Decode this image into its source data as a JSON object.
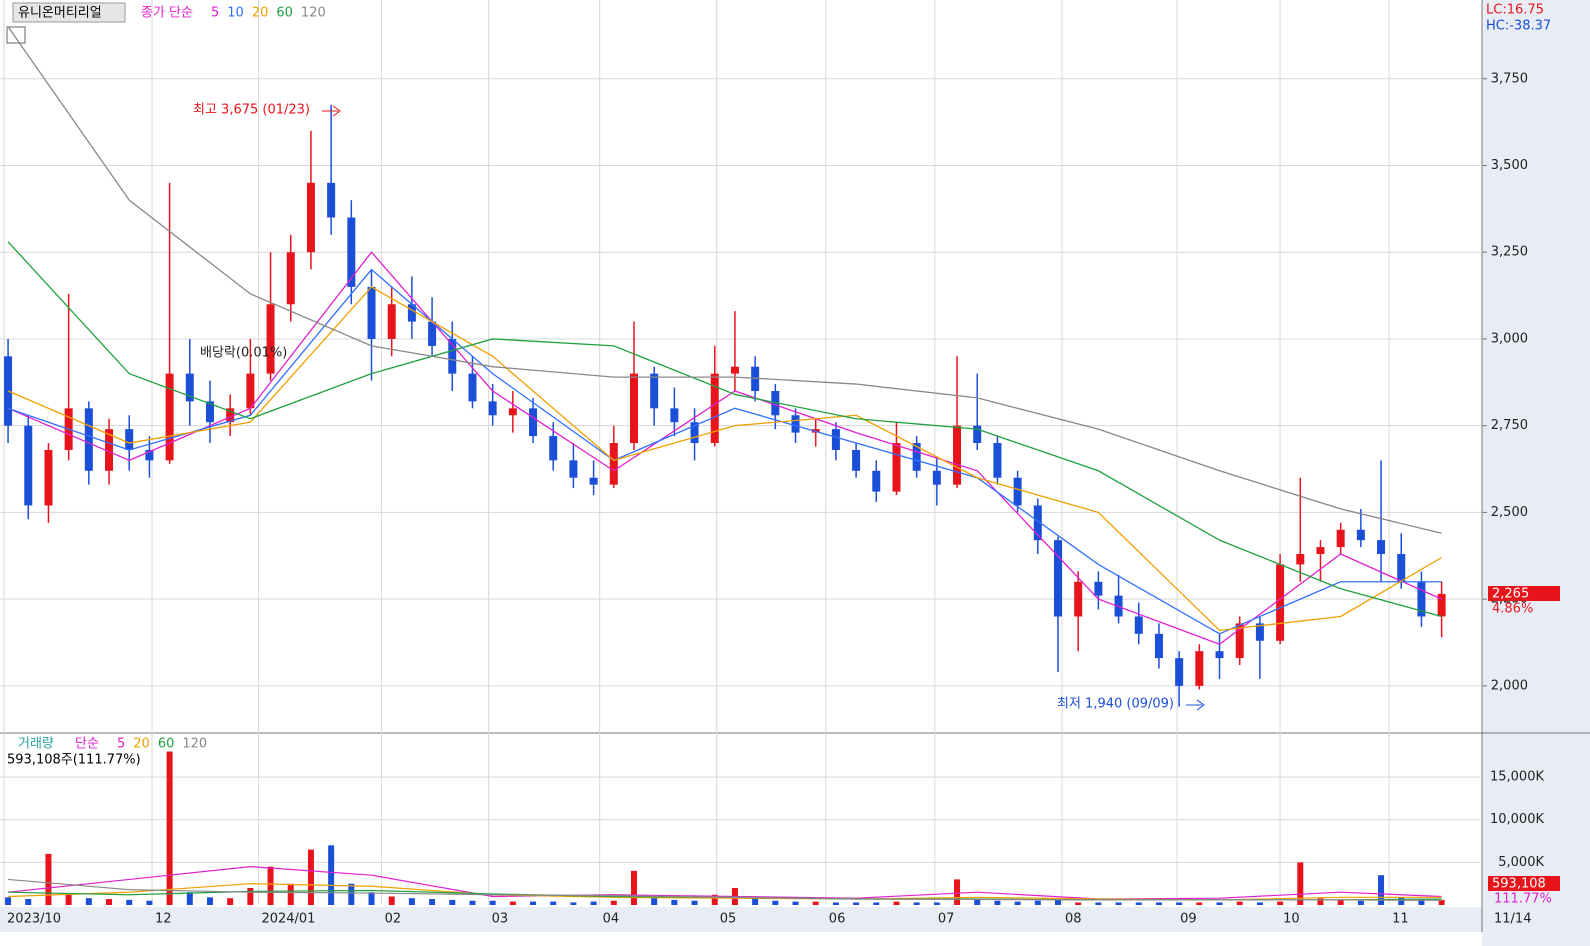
{
  "chart_data": [
    {
      "type": "candlestick",
      "title": "유니온머티리얼",
      "legend_label": "종가 단순",
      "lc": "LC:16.75",
      "hc": "HC:-38.37",
      "price_tag": "2,265",
      "change_tag": "4.86%",
      "annotations": [
        "최고 3,675 (01/23)",
        "최저 1,940 (09/09)",
        "배당락(0.01%)"
      ],
      "open": [
        2950,
        2750,
        2520,
        2680,
        2800,
        2620,
        2740,
        2680,
        2650,
        2900,
        2820,
        2760,
        2800,
        2900,
        3100,
        3250,
        3450,
        3350,
        3150,
        3000,
        3100,
        3050,
        3000,
        2900,
        2820,
        2780,
        2800,
        2720,
        2650,
        2600,
        2580,
        2700,
        2900,
        2800,
        2760,
        2700,
        2900,
        2920,
        2850,
        2780,
        2730,
        2740,
        2680,
        2620,
        2560,
        2700,
        2620,
        2580,
        2750,
        2700,
        2600,
        2520,
        2420,
        2200,
        2300,
        2260,
        2200,
        2150,
        2080,
        2000,
        2100,
        2080,
        2180,
        2130,
        2350,
        2380,
        2400,
        2450,
        2420,
        2380,
        2300,
        2200
      ],
      "high": [
        3000,
        2780,
        2700,
        3130,
        2820,
        2770,
        2780,
        2720,
        3450,
        3000,
        2880,
        2840,
        3000,
        3250,
        3300,
        3600,
        3675,
        3400,
        3200,
        3150,
        3180,
        3120,
        3050,
        2950,
        2870,
        2850,
        2830,
        2760,
        2700,
        2650,
        2750,
        3050,
        2920,
        2860,
        2800,
        2980,
        3080,
        2950,
        2870,
        2800,
        2770,
        2760,
        2700,
        2650,
        2760,
        2720,
        2660,
        2950,
        2900,
        2720,
        2620,
        2540,
        2430,
        2330,
        2330,
        2320,
        2240,
        2180,
        2100,
        2120,
        2150,
        2200,
        2200,
        2380,
        2600,
        2420,
        2470,
        2510,
        2650,
        2440,
        2330,
        2300
      ],
      "low": [
        2700,
        2480,
        2470,
        2650,
        2580,
        2580,
        2620,
        2600,
        2640,
        2750,
        2700,
        2720,
        2780,
        2880,
        3050,
        3200,
        3300,
        3100,
        2880,
        2950,
        3000,
        2950,
        2850,
        2800,
        2750,
        2730,
        2700,
        2620,
        2570,
        2550,
        2570,
        2680,
        2750,
        2720,
        2650,
        2690,
        2850,
        2820,
        2740,
        2700,
        2690,
        2650,
        2600,
        2530,
        2550,
        2600,
        2520,
        2570,
        2680,
        2580,
        2500,
        2380,
        2040,
        2100,
        2220,
        2180,
        2120,
        2050,
        1940,
        1990,
        2020,
        2060,
        2020,
        2120,
        2300,
        2300,
        2380,
        2400,
        2300,
        2280,
        2170,
        2140
      ],
      "close": [
        2750,
        2520,
        2680,
        2800,
        2620,
        2740,
        2680,
        2650,
        2900,
        2820,
        2760,
        2800,
        2900,
        3100,
        3250,
        3450,
        3350,
        3150,
        3000,
        3100,
        3050,
        2980,
        2900,
        2820,
        2780,
        2800,
        2720,
        2650,
        2600,
        2580,
        2700,
        2900,
        2800,
        2760,
        2700,
        2900,
        2920,
        2850,
        2780,
        2730,
        2740,
        2680,
        2620,
        2560,
        2700,
        2620,
        2580,
        2750,
        2700,
        2600,
        2520,
        2420,
        2200,
        2300,
        2260,
        2200,
        2150,
        2080,
        2000,
        2100,
        2080,
        2180,
        2130,
        2350,
        2380,
        2400,
        2450,
        2420,
        2380,
        2300,
        2200,
        2265
      ],
      "series": [
        {
          "name": "5",
          "color": "#e020d0",
          "x": [
            0,
            6,
            12,
            18,
            24,
            30,
            36,
            42,
            48,
            54,
            60,
            66,
            71
          ],
          "values": [
            2800,
            2650,
            2800,
            3250,
            2850,
            2620,
            2850,
            2730,
            2620,
            2250,
            2120,
            2380,
            2250
          ]
        },
        {
          "name": "10",
          "color": "#3070ff",
          "x": [
            0,
            6,
            12,
            18,
            24,
            30,
            36,
            42,
            48,
            54,
            60,
            66,
            71
          ],
          "values": [
            2800,
            2680,
            2780,
            3200,
            2900,
            2650,
            2800,
            2700,
            2600,
            2350,
            2150,
            2300,
            2300
          ]
        },
        {
          "name": "20",
          "color": "#f0a000",
          "x": [
            0,
            6,
            12,
            18,
            24,
            30,
            36,
            42,
            48,
            54,
            60,
            66,
            71
          ],
          "values": [
            2850,
            2700,
            2760,
            3150,
            2950,
            2650,
            2750,
            2780,
            2600,
            2500,
            2160,
            2200,
            2370
          ]
        },
        {
          "name": "60",
          "color": "#20a040",
          "x": [
            0,
            6,
            12,
            18,
            24,
            30,
            36,
            42,
            48,
            54,
            60,
            66,
            71
          ],
          "values": [
            3280,
            2900,
            2770,
            2900,
            3000,
            2980,
            2840,
            2770,
            2740,
            2620,
            2420,
            2280,
            2200
          ]
        },
        {
          "name": "120",
          "color": "#888888",
          "x": [
            0,
            6,
            12,
            18,
            24,
            30,
            36,
            42,
            48,
            54,
            60,
            66,
            71
          ],
          "values": [
            3900,
            3400,
            3130,
            2980,
            2920,
            2890,
            2890,
            2870,
            2830,
            2740,
            2620,
            2510,
            2440
          ]
        }
      ],
      "ylim": [
        1867,
        3977
      ],
      "yticks": [
        {
          "value": 2000,
          "label": "2,000"
        },
        {
          "value": 2250,
          "label": "2,250"
        },
        {
          "value": 2500,
          "label": "2,500"
        },
        {
          "value": 2750,
          "label": "2,750"
        },
        {
          "value": 3000,
          "label": "3,000"
        },
        {
          "value": 3250,
          "label": "3,250"
        },
        {
          "value": 3500,
          "label": "3,500"
        },
        {
          "value": 3750,
          "label": "3,750"
        }
      ],
      "xlim": [
        -0.4,
        73
      ],
      "xticks": [
        {
          "value": -0.2,
          "label": "2023/10"
        },
        {
          "value": 7.13,
          "label": "12"
        },
        {
          "value": 12.4,
          "label": "2024/01"
        },
        {
          "value": 18.5,
          "label": "02"
        },
        {
          "value": 23.8,
          "label": "03"
        },
        {
          "value": 29.3,
          "label": "04"
        },
        {
          "value": 35.1,
          "label": "05"
        },
        {
          "value": 40.5,
          "label": "06"
        },
        {
          "value": 45.9,
          "label": "07"
        },
        {
          "value": 52.2,
          "label": "08"
        },
        {
          "value": 57.9,
          "label": "09"
        },
        {
          "value": 63.0,
          "label": "10"
        },
        {
          "value": 68.4,
          "label": "11"
        }
      ],
      "last_date": "11/14"
    },
    {
      "type": "bar",
      "title": "거래량",
      "legend_label": "단순",
      "subtitle": "593,108주(111.77%)",
      "volume_tag": "593,108",
      "ratio_tag": "111.77%",
      "values": [
        900,
        700,
        6000,
        1200,
        800,
        700,
        600,
        500,
        18000,
        1500,
        900,
        800,
        2000,
        4500,
        2500,
        6500,
        7000,
        2500,
        1500,
        1000,
        800,
        700,
        600,
        500,
        500,
        400,
        400,
        400,
        300,
        400,
        500,
        4000,
        900,
        600,
        500,
        1200,
        2000,
        800,
        500,
        400,
        400,
        300,
        300,
        300,
        400,
        300,
        300,
        3000,
        700,
        500,
        400,
        500,
        600,
        300,
        300,
        300,
        300,
        300,
        300,
        300,
        300,
        400,
        300,
        400,
        5000,
        800,
        600,
        500,
        3500,
        900,
        700,
        593
      ],
      "series": [
        {
          "name": "5",
          "color": "#e020d0",
          "x": [
            0,
            6,
            12,
            18,
            24,
            30,
            36,
            42,
            48,
            54,
            60,
            66,
            71
          ],
          "values": [
            1500,
            3000,
            4500,
            3500,
            1000,
            1200,
            1000,
            800,
            1500,
            700,
            800,
            1500,
            1000
          ]
        },
        {
          "name": "20",
          "color": "#f0a000",
          "x": [
            0,
            6,
            12,
            18,
            24,
            30,
            36,
            42,
            48,
            54,
            60,
            66,
            71
          ],
          "values": [
            1000,
            1500,
            2500,
            2200,
            1200,
            900,
            800,
            700,
            900,
            700,
            600,
            900,
            900
          ]
        },
        {
          "name": "60",
          "color": "#20a040",
          "x": [
            0,
            6,
            12,
            18,
            24,
            30,
            36,
            42,
            48,
            54,
            60,
            66,
            71
          ],
          "values": [
            1500,
            1200,
            1600,
            1700,
            1300,
            1000,
            900,
            700,
            700,
            600,
            600,
            600,
            700
          ]
        },
        {
          "name": "120",
          "color": "#888888",
          "x": [
            0,
            6,
            12,
            18,
            24,
            30,
            36,
            42,
            48,
            54,
            60,
            66,
            71
          ],
          "values": [
            3000,
            1800,
            1500,
            1400,
            1200,
            1100,
            900,
            700,
            650,
            600,
            600,
            600,
            550
          ]
        }
      ],
      "ylim": [
        0,
        19940
      ],
      "yticks": [
        {
          "value": 5000,
          "label": "5,000K"
        },
        {
          "value": 10000,
          "label": "10,000K"
        },
        {
          "value": 15000,
          "label": "15,000K"
        }
      ]
    }
  ]
}
